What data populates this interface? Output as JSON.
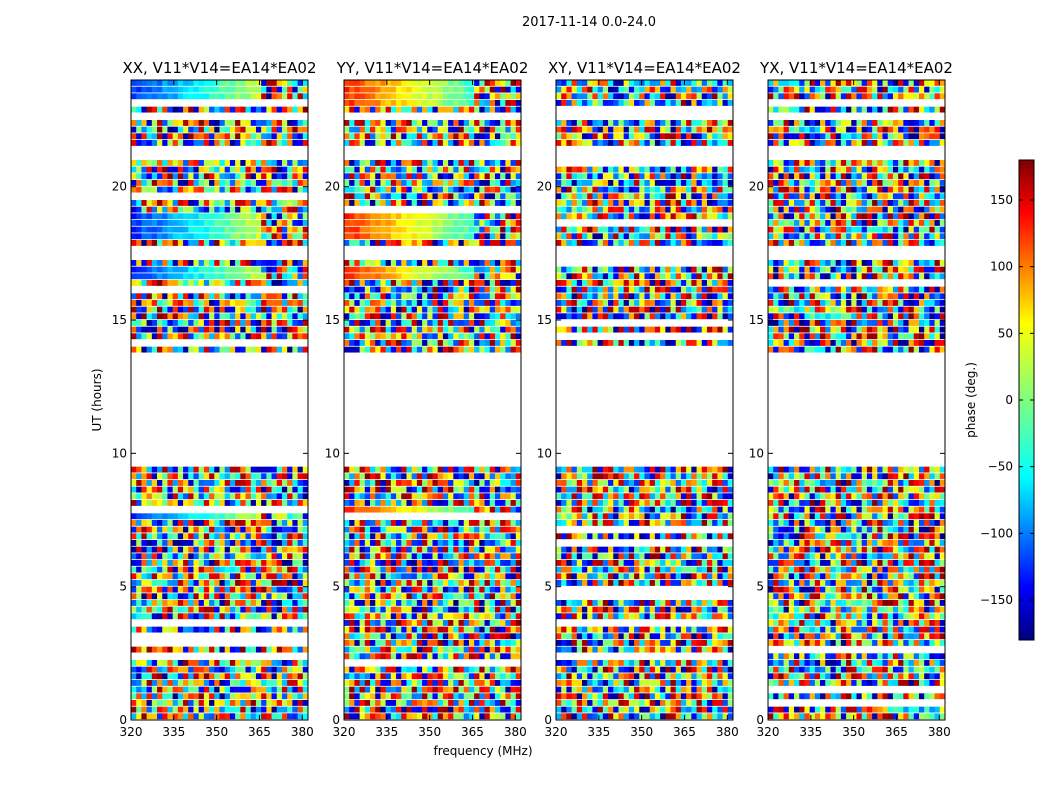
{
  "chart_data": {
    "type": "heatmap",
    "suptitle": "2017-11-14 0.0-24.0",
    "xlabel": "frequency (MHz)",
    "ylabel": "UT (hours)",
    "xlim": [
      320,
      382
    ],
    "ylim": [
      0,
      24
    ],
    "xticks": [
      320,
      335,
      350,
      365,
      380
    ],
    "yticks": [
      0,
      5,
      10,
      15,
      20
    ],
    "panels": [
      {
        "title": "XX, V11*V14=EA14*EA02",
        "polarization": "XX"
      },
      {
        "title": "YY, V11*V14=EA14*EA02",
        "polarization": "YY"
      },
      {
        "title": "XY, V11*V14=EA14*EA02",
        "polarization": "XY"
      },
      {
        "title": "YX, V11*V14=EA14*EA02",
        "polarization": "YX"
      }
    ],
    "colorbar": {
      "label": "phase (deg.)",
      "range": [
        -180,
        180
      ],
      "ticks": [
        150,
        100,
        50,
        0,
        -50,
        -100,
        -150
      ],
      "colormap": "jet"
    },
    "data_gaps_hours": [
      [
        9.6,
        13.8
      ],
      [
        17.2,
        17.7
      ],
      [
        22.4,
        22.7
      ],
      [
        21.1,
        21.4
      ]
    ],
    "structured_phase_rows_hours": [
      [
        16.4,
        17.1
      ],
      [
        17.9,
        19.1
      ],
      [
        23.1,
        24.0
      ],
      [
        7.5,
        7.9
      ]
    ]
  }
}
